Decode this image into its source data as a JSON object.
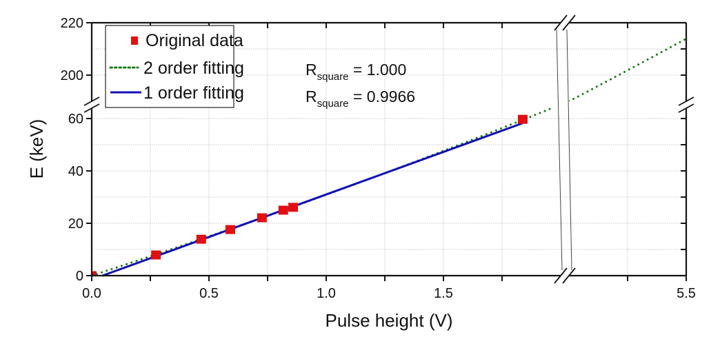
{
  "chart_data": {
    "type": "scatter",
    "xlabel": "Pulse height (V)",
    "ylabel": "E (keV)",
    "x_segments": [
      [
        0,
        2.0
      ],
      [
        5.0,
        5.5
      ]
    ],
    "y_segments": [
      [
        0,
        64
      ],
      [
        190,
        220
      ]
    ],
    "x_tick_labels": [
      "0.0",
      "0.5",
      "1.0",
      "1.5",
      "5.5"
    ],
    "x_tick_values": [
      0,
      0.5,
      1.0,
      1.5,
      5.5
    ],
    "y_tick_labels": [
      "0",
      "20",
      "40",
      "60",
      "200",
      "220"
    ],
    "y_tick_values": [
      0,
      20,
      40,
      60,
      200,
      220
    ],
    "grid": true,
    "legend_position": "top-left",
    "series": [
      {
        "name": "Original data",
        "kind": "scatter",
        "color": "#e01010",
        "x": [
          0.0,
          0.274,
          0.467,
          0.591,
          0.726,
          0.817,
          0.859,
          1.838
        ],
        "y": [
          0.0,
          7.9,
          13.9,
          17.6,
          22.1,
          25.0,
          26.1,
          59.7
        ]
      },
      {
        "name": "2 order fitting",
        "kind": "dotted-line",
        "color": "#1a7a1a",
        "coefficients": {
          "a0": 0,
          "a1": 29.1,
          "a2": 1.78
        }
      },
      {
        "name": "1 order fitting",
        "kind": "line",
        "color": "#1010b0",
        "x_range": [
          0.045,
          1.838
        ],
        "coefficients": {
          "a0": -1.5,
          "a1": 32.5
        }
      }
    ],
    "annotations": [
      {
        "main": "R",
        "sub": "square",
        "rest": " = 1.000"
      },
      {
        "main": "R",
        "sub": "square",
        "rest": " = 0.9966"
      }
    ]
  }
}
